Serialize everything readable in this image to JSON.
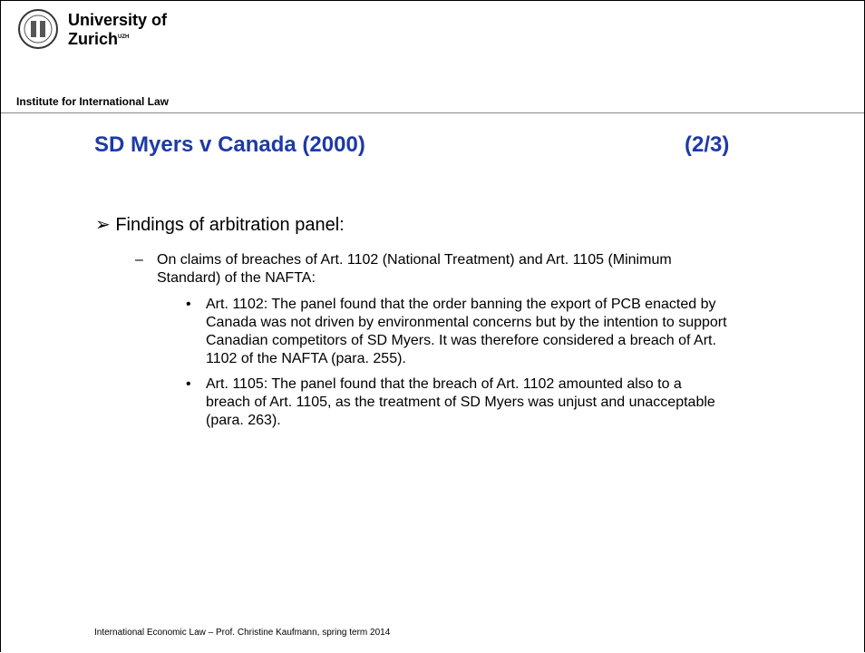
{
  "header": {
    "university_line1": "University of",
    "university_line2": "Zurich",
    "university_sup": "UZH",
    "institute": "Institute for International Law"
  },
  "slide": {
    "title": "SD Myers v Canada (2000)",
    "page": "(2/3)",
    "bullet": "Findings of arbitration panel:",
    "sub": "On claims of breaches of Art. 1102 (National Treatment) and Art. 1105 (Minimum Standard) of the NAFTA:",
    "items": [
      "Art. 1102: The panel found that the order banning the export of PCB enacted by Canada was not driven by environmental concerns but by the intention to support Canadian competitors of SD Myers. It was therefore considered a breach of Art. 1102 of the NAFTA (para. 255).",
      "Art. 1105: The panel found that the breach of Art. 1102 amounted also to a breach of Art. 1105, as the treatment of SD Myers was unjust and unacceptable (para. 263)."
    ]
  },
  "footer": "International Economic Law – Prof. Christine Kaufmann, spring term 2014"
}
